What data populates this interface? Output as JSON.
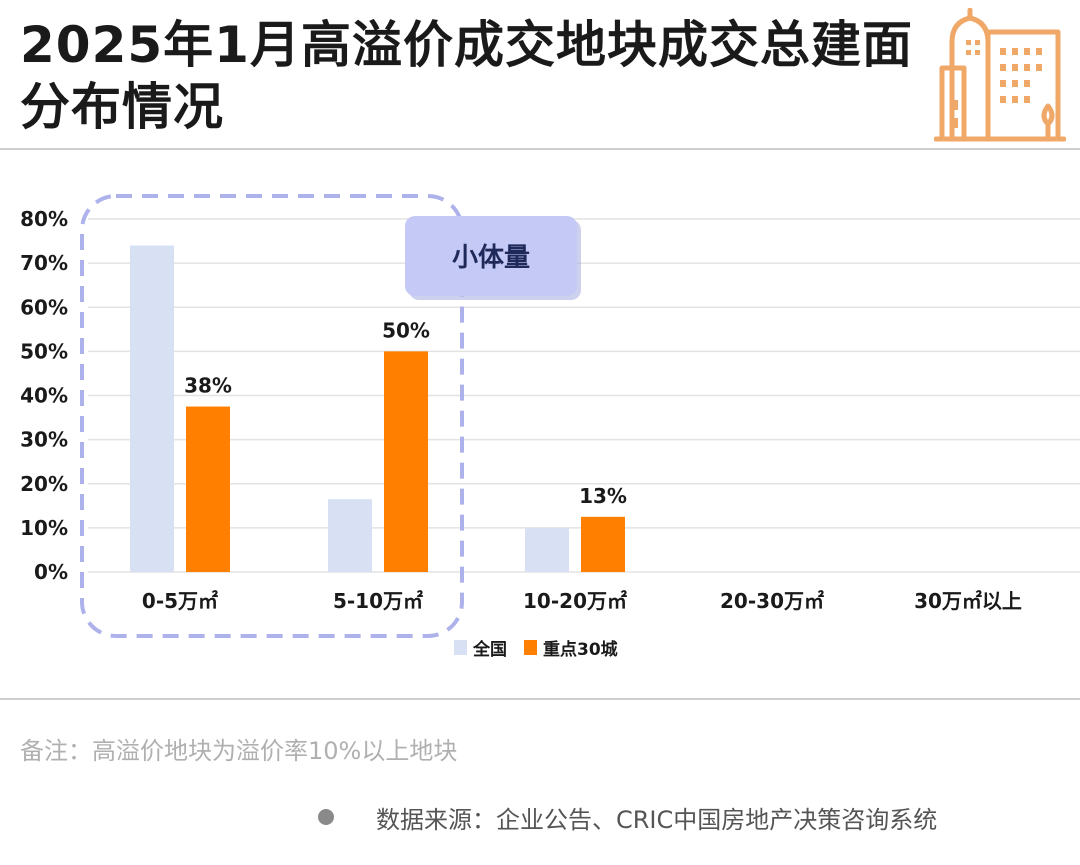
{
  "title": "2025年1月高溢价成交地块成交总建面分布情况",
  "note": "备注：高溢价地块为溢价率10%以上地块",
  "source": "数据来源：企业公告、CRIC中国房地产决策咨询系统",
  "colors": {
    "series_national": "#d7e1f3",
    "series_key30": "#ff7f00",
    "icon": "#f0a868",
    "callout_fill": "#c5c9f5",
    "callout_dash": "#aeb2ea",
    "grid": "#e3e3e3"
  },
  "icons": [
    "buildings-icon"
  ],
  "chart_data": {
    "type": "bar",
    "categories": [
      "0-5万㎡",
      "5-10万㎡",
      "10-20万㎡",
      "20-30万㎡",
      "30万㎡以上"
    ],
    "series": [
      {
        "name": "全国",
        "values": [
          74,
          16.5,
          10,
          0,
          0
        ]
      },
      {
        "name": "重点30城",
        "values": [
          37.5,
          50,
          12.5,
          0,
          0
        ]
      }
    ],
    "data_labels": [
      {
        "series": 1,
        "index": 0,
        "text": "38%"
      },
      {
        "series": 1,
        "index": 1,
        "text": "50%"
      },
      {
        "series": 1,
        "index": 2,
        "text": "13%"
      }
    ],
    "yticks": [
      "0%",
      "10%",
      "20%",
      "30%",
      "40%",
      "50%",
      "60%",
      "70%",
      "80%"
    ],
    "ylim": [
      0,
      80
    ],
    "grid": true,
    "legend": [
      "全国",
      "重点30城"
    ],
    "legend_position": "bottom-center",
    "annotation": {
      "text": "小体量",
      "covers": [
        "0-5万㎡",
        "5-10万㎡"
      ]
    }
  }
}
